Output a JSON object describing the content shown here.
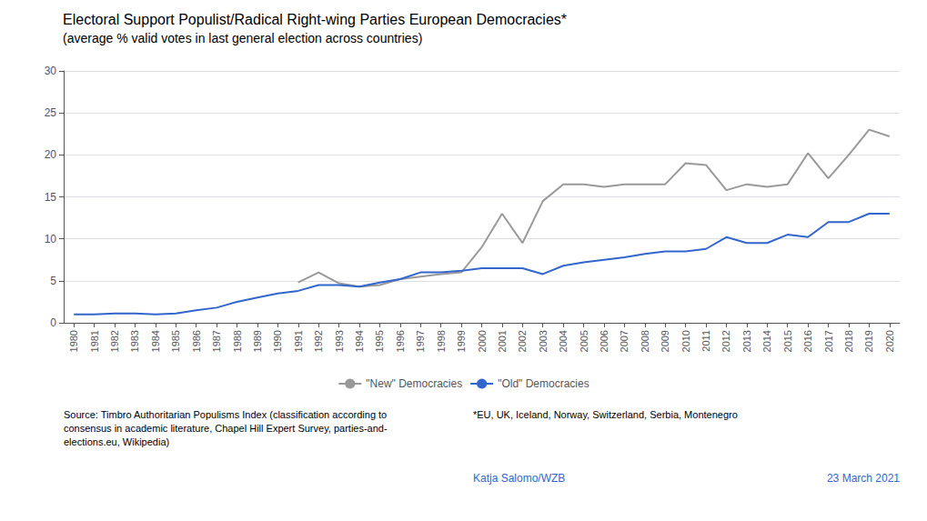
{
  "chart_data": {
    "type": "line",
    "title": "Electoral Support Populist/Radical Right-wing Parties European Democracies*",
    "subtitle": "(average % valid votes in last general election across countries)",
    "x": [
      1980,
      1981,
      1982,
      1983,
      1984,
      1985,
      1986,
      1987,
      1988,
      1989,
      1990,
      1991,
      1992,
      1993,
      1994,
      1995,
      1996,
      1997,
      1998,
      1999,
      2000,
      2001,
      2002,
      2003,
      2004,
      2005,
      2006,
      2007,
      2008,
      2009,
      2010,
      2011,
      2012,
      2013,
      2014,
      2015,
      2016,
      2017,
      2018,
      2019,
      2020
    ],
    "series": [
      {
        "name": "\"New\" Democracies",
        "color": "#999999",
        "values": [
          null,
          null,
          null,
          null,
          null,
          null,
          null,
          null,
          null,
          null,
          null,
          4.8,
          6.0,
          4.7,
          4.3,
          4.5,
          5.2,
          5.5,
          5.8,
          6.0,
          9.0,
          13.0,
          9.5,
          14.5,
          16.5,
          16.5,
          16.2,
          16.5,
          16.5,
          16.5,
          19.0,
          18.8,
          15.8,
          16.5,
          16.2,
          16.5,
          20.2,
          17.2,
          20.0,
          23.0,
          22.2
        ]
      },
      {
        "name": "\"Old\" Democracies",
        "color": "#3366cc",
        "values": [
          1.0,
          1.0,
          1.1,
          1.1,
          1.0,
          1.1,
          1.5,
          1.8,
          2.5,
          3.0,
          3.5,
          3.8,
          4.5,
          4.5,
          4.3,
          4.8,
          5.2,
          6.0,
          6.0,
          6.2,
          6.5,
          6.5,
          6.5,
          5.8,
          6.8,
          7.2,
          7.5,
          7.8,
          8.2,
          8.5,
          8.5,
          8.8,
          10.2,
          9.5,
          9.5,
          10.5,
          10.2,
          12.0,
          12.0,
          13.0,
          13.0
        ]
      }
    ],
    "xlim": [
      1979.5,
      2020.5
    ],
    "xticks": [
      1980,
      1981,
      1982,
      1983,
      1984,
      1985,
      1986,
      1987,
      1988,
      1989,
      1990,
      1991,
      1992,
      1993,
      1994,
      1995,
      1996,
      1997,
      1998,
      1999,
      2000,
      2001,
      2002,
      2003,
      2004,
      2005,
      2006,
      2007,
      2008,
      2009,
      2010,
      2011,
      2012,
      2013,
      2014,
      2015,
      2016,
      2017,
      2018,
      2019,
      2020
    ],
    "ylim": [
      0,
      30
    ],
    "yticks": [
      0,
      5,
      10,
      15,
      20,
      25,
      30
    ],
    "grid": true,
    "legend": "bottom",
    "annotations": [
      "Source: Timbro Authoritarian Populisms Index (classification according to\nconsensus in academic literature, Chapel Hill Expert Survey, parties-and-\nelections.eu, Wikipedia)",
      "*EU, UK, Iceland, Norway, Switzerland, Serbia, Montenegro",
      "Katja Salomo/WZB",
      "23 March 2021"
    ]
  }
}
